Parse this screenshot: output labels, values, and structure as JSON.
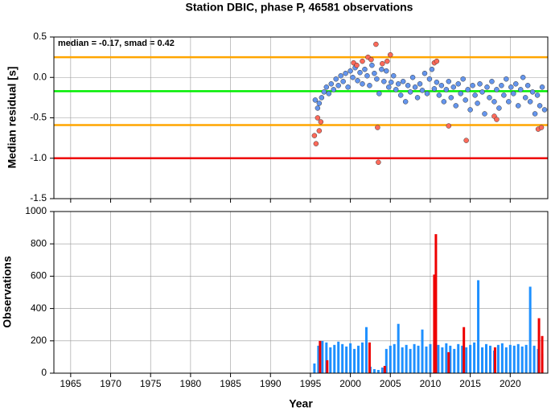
{
  "chart_data": [
    {
      "type": "scatter",
      "title": "Station DBIC, phase P, 46581 observations",
      "ylabel": "Median residual [s]",
      "annotation": "median = -0.17, smad = 0.42",
      "xlim": [
        1962.9,
        2024.7
      ],
      "xticks": [
        1965,
        1970,
        1975,
        1980,
        1985,
        1990,
        1995,
        2000,
        2005,
        2010,
        2015,
        2020
      ],
      "ylim": [
        -1.5,
        0.5
      ],
      "yticks": [
        0.5,
        {
          "value": 0,
          "label": "0.0"
        },
        -0.5,
        {
          "value": -1,
          "label": "-1.0"
        },
        -1.5
      ],
      "grid": true,
      "hlines": [
        {
          "value": 0.25,
          "color": "#ffa500"
        },
        {
          "value": -0.17,
          "color": "#00ee00"
        },
        {
          "value": -0.59,
          "color": "#ffa500"
        },
        {
          "value": -1.0,
          "color": "#ee0000"
        }
      ],
      "series": [
        {
          "color": "#6495ed",
          "x": [
            1995.6,
            1995.9,
            1996.1,
            1996.4,
            1996.7,
            1997.0,
            1997.3,
            1997.6,
            1997.9,
            1998.2,
            1998.5,
            1998.8,
            1999.1,
            1999.4,
            1999.7,
            2000.0,
            2000.3,
            2000.6,
            2000.9,
            2001.2,
            2001.5,
            2001.8,
            2002.1,
            2002.4,
            2002.7,
            2003.0,
            2003.3,
            2003.6,
            2003.9,
            2004.2,
            2004.5,
            2004.8,
            2005.1,
            2005.4,
            2005.7,
            2006.0,
            2006.3,
            2006.6,
            2006.9,
            2007.2,
            2007.5,
            2007.8,
            2008.1,
            2008.4,
            2008.7,
            2009.0,
            2009.3,
            2009.6,
            2009.9,
            2010.2,
            2010.5,
            2010.8,
            2011.1,
            2011.4,
            2011.7,
            2012.0,
            2012.3,
            2012.6,
            2012.9,
            2013.2,
            2013.5,
            2013.8,
            2014.1,
            2014.4,
            2014.7,
            2015.0,
            2015.3,
            2015.6,
            2015.9,
            2016.2,
            2016.5,
            2016.8,
            2017.1,
            2017.4,
            2017.7,
            2018.0,
            2018.3,
            2018.6,
            2018.9,
            2019.2,
            2019.5,
            2019.8,
            2020.1,
            2020.4,
            2020.7,
            2021.0,
            2021.3,
            2021.6,
            2021.9,
            2022.2,
            2022.5,
            2022.8,
            2023.1,
            2023.4,
            2023.7,
            2024.0,
            2024.3
          ],
          "values": [
            -0.28,
            -0.38,
            -0.32,
            -0.25,
            -0.18,
            -0.12,
            -0.2,
            -0.08,
            -0.15,
            -0.02,
            -0.1,
            0.02,
            -0.05,
            0.05,
            -0.12,
            0.08,
            0.0,
            0.12,
            -0.04,
            0.06,
            -0.08,
            0.1,
            0.02,
            -0.1,
            0.15,
            0.05,
            -0.02,
            -0.2,
            0.1,
            -0.05,
            0.08,
            -0.12,
            -0.06,
            0.02,
            -0.15,
            -0.08,
            -0.22,
            -0.05,
            -0.3,
            -0.1,
            -0.18,
            0.0,
            -0.12,
            -0.25,
            -0.08,
            -0.16,
            0.05,
            -0.2,
            -0.02,
            0.1,
            -0.14,
            -0.06,
            -0.22,
            -0.1,
            -0.3,
            -0.15,
            -0.05,
            -0.25,
            -0.12,
            -0.35,
            -0.08,
            -0.2,
            -0.02,
            -0.28,
            -0.15,
            -0.4,
            -0.1,
            -0.22,
            -0.32,
            -0.08,
            -0.18,
            -0.45,
            -0.12,
            -0.25,
            -0.05,
            -0.3,
            -0.15,
            -0.38,
            -0.1,
            -0.22,
            -0.02,
            -0.3,
            -0.12,
            -0.2,
            -0.08,
            -0.35,
            -0.15,
            0.0,
            -0.25,
            -0.1,
            -0.3,
            -0.18,
            -0.45,
            -0.22,
            -0.35,
            -0.12,
            -0.4
          ]
        },
        {
          "color": "#ff6a5a",
          "x": [
            1995.5,
            1995.7,
            1995.9,
            1996.1,
            1996.3,
            2000.4,
            2000.8,
            2001.5,
            2002.2,
            2002.6,
            2003.2,
            2003.4,
            2003.5,
            2004.0,
            2004.6,
            2005.0,
            2010.5,
            2010.8,
            2012.3,
            2014.5,
            2018.0,
            2018.3,
            2023.5,
            2023.9
          ],
          "values": [
            -0.72,
            -0.82,
            -0.5,
            -0.66,
            -0.55,
            0.18,
            0.15,
            0.2,
            0.25,
            0.22,
            0.41,
            -0.62,
            -1.05,
            0.17,
            0.2,
            0.28,
            0.18,
            0.2,
            -0.6,
            -0.78,
            -0.48,
            -0.52,
            -0.64,
            -0.62
          ]
        }
      ]
    },
    {
      "type": "bar",
      "xlabel": "Year",
      "ylabel": "Observations",
      "xlim": [
        1962.9,
        2024.7
      ],
      "xticks": [
        1965,
        1970,
        1975,
        1980,
        1985,
        1990,
        1995,
        2000,
        2005,
        2010,
        2015,
        2020
      ],
      "ylim": [
        0,
        1000
      ],
      "yticks": [
        0,
        200,
        400,
        600,
        800,
        1000
      ],
      "grid": true,
      "series": [
        {
          "color": "#1e90ff",
          "x": [
            1995.5,
            1996.0,
            1996.5,
            1997.0,
            1997.5,
            1998.0,
            1998.5,
            1999.0,
            1999.5,
            2000.0,
            2000.5,
            2001.0,
            2001.5,
            2002.0,
            2002.5,
            2003.0,
            2003.5,
            2004.0,
            2004.5,
            2005.0,
            2005.5,
            2006.0,
            2006.5,
            2007.0,
            2007.5,
            2008.0,
            2008.5,
            2009.0,
            2009.5,
            2010.0,
            2010.5,
            2011.0,
            2011.5,
            2012.0,
            2012.5,
            2013.0,
            2013.5,
            2014.0,
            2014.5,
            2015.0,
            2015.5,
            2016.0,
            2016.5,
            2017.0,
            2017.5,
            2018.0,
            2018.5,
            2019.0,
            2019.5,
            2020.0,
            2020.5,
            2021.0,
            2021.5,
            2022.0,
            2022.5,
            2023.0,
            2023.5,
            2024.0
          ],
          "values": [
            60,
            170,
            200,
            190,
            160,
            175,
            195,
            180,
            165,
            185,
            150,
            170,
            190,
            285,
            40,
            25,
            20,
            35,
            150,
            170,
            180,
            305,
            160,
            175,
            150,
            180,
            170,
            270,
            165,
            180,
            190,
            175,
            160,
            185,
            170,
            150,
            180,
            170,
            160,
            175,
            190,
            575,
            160,
            180,
            170,
            140,
            175,
            185,
            160,
            175,
            170,
            180,
            165,
            175,
            535,
            170,
            150,
            120
          ]
        },
        {
          "color": "#ee0000",
          "x": [
            1996.2,
            1997.1,
            2002.4,
            2004.3,
            2010.5,
            2010.7,
            2012.3,
            2014.2,
            2018.1,
            2023.6,
            2024.0
          ],
          "values": [
            200,
            80,
            190,
            45,
            610,
            860,
            130,
            285,
            160,
            340,
            230
          ]
        }
      ]
    }
  ]
}
